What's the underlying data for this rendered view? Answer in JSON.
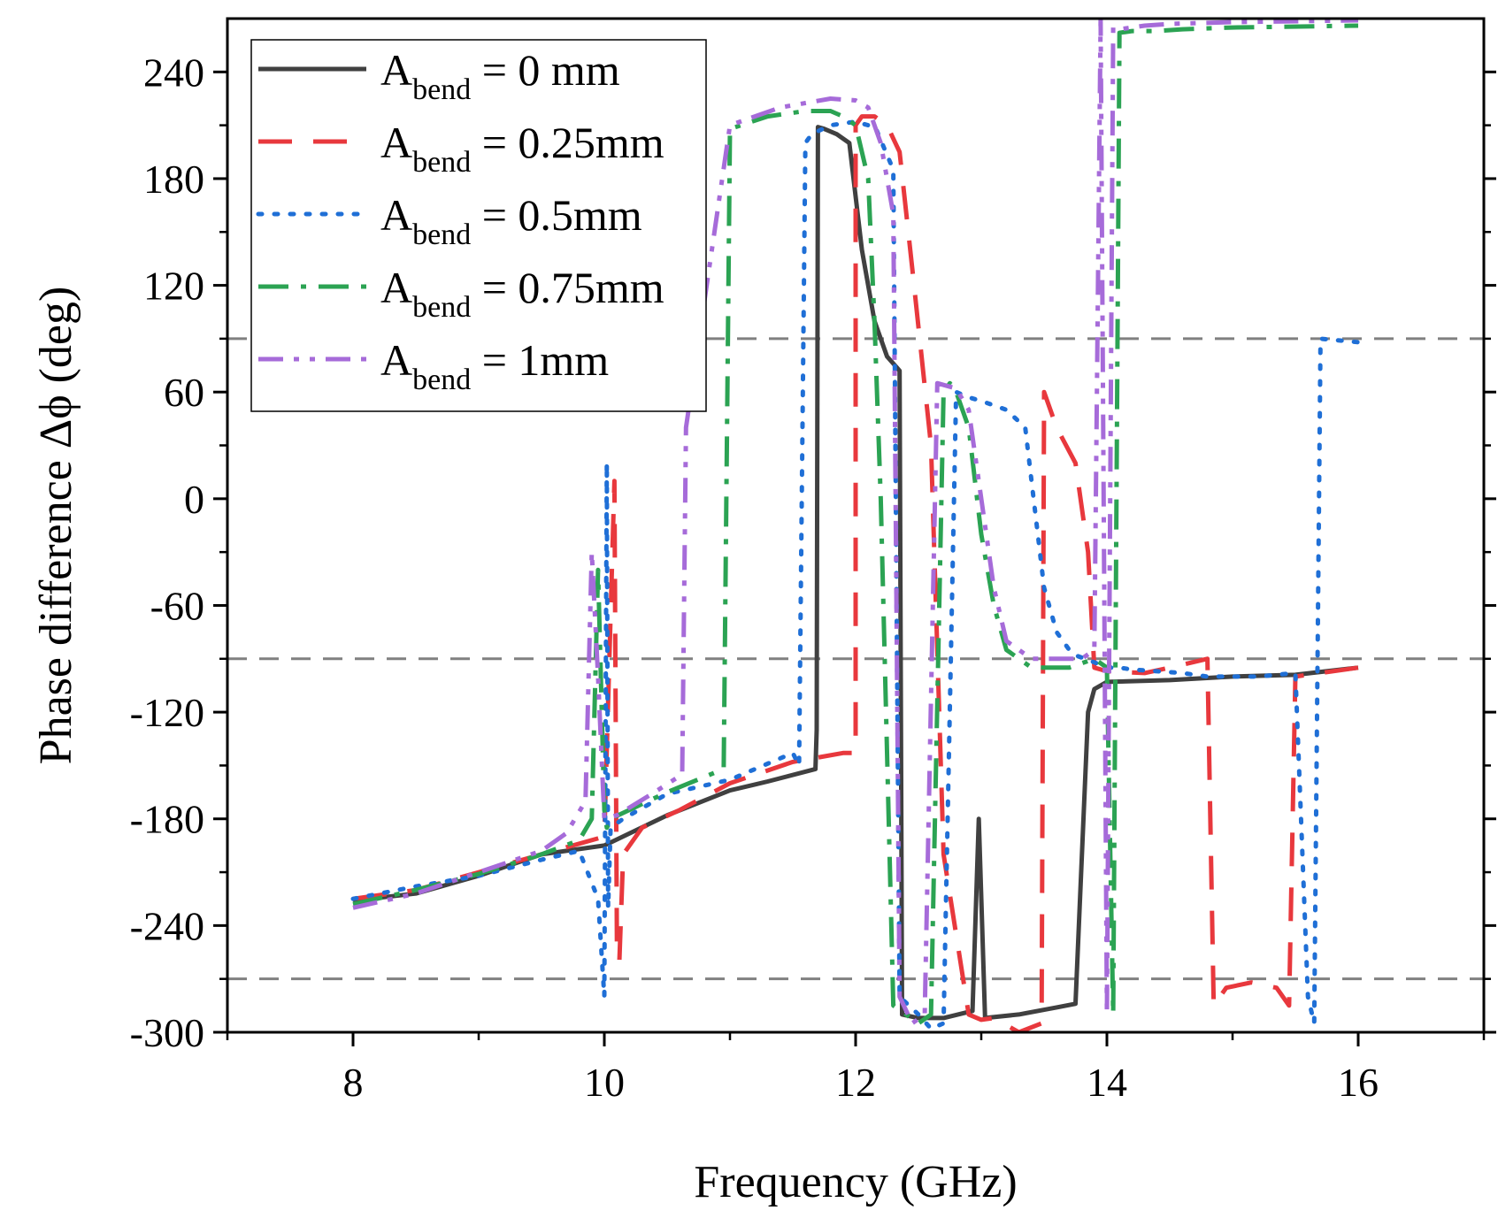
{
  "chart_data": {
    "type": "line",
    "xlabel": "Frequency (GHz)",
    "ylabel": "Phase difference Δϕ (deg)",
    "xlim": [
      7,
      17
    ],
    "ylim": [
      -300,
      270
    ],
    "xticks": [
      8,
      10,
      12,
      14,
      16
    ],
    "xtick_labels": [
      "8",
      "10",
      "12",
      "14",
      "16"
    ],
    "yticks": [
      -300,
      -240,
      -180,
      -120,
      -60,
      0,
      60,
      120,
      180,
      240
    ],
    "ytick_labels": [
      "-300",
      "-240",
      "-180",
      "-120",
      "-60",
      "0",
      "60",
      "120",
      "180",
      "240"
    ],
    "reference_lines": [
      90,
      -90,
      -270
    ],
    "reference_color": "#808080",
    "legend_position": "top-left",
    "legend": [
      {
        "prefix": "A",
        "sub": "bend",
        "suffix": " = 0 mm"
      },
      {
        "prefix": "A",
        "sub": "bend",
        "suffix": " = 0.25mm"
      },
      {
        "prefix": "A",
        "sub": "bend",
        "suffix": " = 0.5mm"
      },
      {
        "prefix": "A",
        "sub": "bend",
        "suffix": " = 0.75mm"
      },
      {
        "prefix": "A",
        "sub": "bend",
        "suffix": " = 1mm"
      }
    ],
    "series": [
      {
        "name": "A_bend = 0 mm",
        "color": "#404040",
        "dash": "solid",
        "x": [
          8.0,
          8.5,
          9.0,
          9.5,
          10.0,
          10.5,
          11.0,
          11.3,
          11.68,
          11.69,
          11.7,
          11.75,
          11.85,
          11.95,
          12.05,
          12.15,
          12.25,
          12.35,
          12.37,
          12.5,
          12.7,
          12.93,
          12.98,
          13.03,
          13.3,
          13.6,
          13.75,
          13.85,
          13.9,
          14.0,
          14.5,
          15.0,
          15.5,
          16.0
        ],
        "y": [
          -226,
          -222,
          -212,
          -200,
          -195,
          -178,
          -164,
          -159,
          -152,
          -130,
          209,
          208,
          205,
          200,
          140,
          100,
          80,
          72,
          -290,
          -292,
          -292,
          -288,
          -180,
          -292,
          -290,
          -286,
          -284,
          -120,
          -107,
          -103,
          -102,
          -100,
          -99,
          -95
        ]
      },
      {
        "name": "A_bend = 0.25mm",
        "color": "#e8383d",
        "dash": "dashed",
        "x": [
          8.0,
          8.5,
          9.0,
          9.5,
          10.0,
          10.08,
          10.1,
          10.12,
          10.15,
          10.3,
          10.6,
          11.0,
          11.5,
          11.9,
          12.0,
          12.0,
          12.05,
          12.15,
          12.25,
          12.35,
          12.45,
          12.6,
          12.7,
          12.9,
          13.0,
          13.1,
          13.3,
          13.48,
          13.5,
          13.6,
          13.75,
          13.85,
          13.9,
          14.0,
          14.3,
          14.5,
          14.8,
          14.85,
          14.95,
          15.15,
          15.35,
          15.45,
          15.5,
          16.0
        ],
        "y": [
          -225,
          -220,
          -210,
          -200,
          -190,
          10,
          -250,
          -260,
          -200,
          -185,
          -175,
          -160,
          -148,
          -143,
          -143,
          210,
          215,
          215,
          210,
          195,
          130,
          30,
          -200,
          -290,
          -293,
          -292,
          -300,
          -295,
          60,
          40,
          20,
          -30,
          -95,
          -97,
          -98,
          -95,
          -90,
          -285,
          -275,
          -272,
          -275,
          -285,
          -100,
          -95
        ]
      },
      {
        "name": "A_bend = 0.5mm",
        "color": "#1f6fd6",
        "dash": "dotted",
        "x": [
          8.0,
          8.5,
          9.0,
          9.5,
          9.8,
          9.95,
          10.0,
          10.02,
          10.03,
          10.05,
          10.15,
          10.5,
          11.0,
          11.5,
          11.55,
          11.6,
          11.65,
          11.8,
          12.0,
          12.1,
          12.15,
          12.3,
          12.35,
          12.5,
          12.6,
          12.7,
          12.8,
          12.9,
          13.0,
          13.2,
          13.35,
          13.5,
          13.6,
          13.7,
          13.75,
          13.9,
          14.0,
          14.1,
          14.2,
          14.4,
          14.6,
          14.8,
          15.0,
          15.2,
          15.5,
          15.6,
          15.65,
          15.7,
          16.0
        ],
        "y": [
          -225,
          -218,
          -212,
          -203,
          -198,
          -225,
          -280,
          20,
          -230,
          -185,
          -180,
          -166,
          -158,
          -143,
          -150,
          200,
          205,
          210,
          212,
          210,
          210,
          185,
          -280,
          -290,
          -298,
          -295,
          60,
          57,
          55,
          50,
          40,
          -50,
          -75,
          -85,
          -88,
          -92,
          -95,
          -95,
          -96,
          -97,
          -98,
          -100,
          -100,
          -100,
          -98,
          -280,
          -295,
          90,
          88
        ]
      },
      {
        "name": "A_bend = 0.75mm",
        "color": "#2ba353",
        "dash": "dashdot",
        "x": [
          8.0,
          8.5,
          9.0,
          9.5,
          9.8,
          9.9,
          9.95,
          10.0,
          10.02,
          10.05,
          10.5,
          10.95,
          11.0,
          11.3,
          11.6,
          11.8,
          11.9,
          12.0,
          12.1,
          12.15,
          12.2,
          12.3,
          12.5,
          12.6,
          12.7,
          12.75,
          12.8,
          12.9,
          13.0,
          13.1,
          13.2,
          13.4,
          13.7,
          13.9,
          14.0,
          14.05,
          14.1,
          14.2,
          14.4,
          14.6,
          15.0,
          16.0
        ],
        "y": [
          -228,
          -220,
          -211,
          -200,
          -192,
          -180,
          -40,
          -175,
          -185,
          -180,
          -165,
          -152,
          208,
          215,
          218,
          218,
          215,
          210,
          180,
          100,
          0,
          -285,
          -295,
          -290,
          60,
          65,
          60,
          40,
          -20,
          -60,
          -85,
          -95,
          -95,
          -90,
          -95,
          -290,
          262,
          263,
          263,
          264,
          265,
          266
        ]
      },
      {
        "name": "A_bend = 1mm",
        "color": "#a66bd9",
        "dash": "dashdotdot",
        "x": [
          8.0,
          8.5,
          9.0,
          9.5,
          9.7,
          9.85,
          9.9,
          9.95,
          10.0,
          10.1,
          10.4,
          10.62,
          10.65,
          11.0,
          11.4,
          11.8,
          12.0,
          12.1,
          12.2,
          12.3,
          12.35,
          12.45,
          12.55,
          12.65,
          12.8,
          12.9,
          13.0,
          13.1,
          13.2,
          13.4,
          13.6,
          13.8,
          13.9,
          13.95,
          14.0,
          14.05,
          14.1,
          14.2,
          14.3,
          14.5,
          15.0,
          16.0
        ],
        "y": [
          -230,
          -222,
          -210,
          -198,
          -188,
          -170,
          -30,
          -100,
          -180,
          -178,
          -165,
          -155,
          40,
          210,
          220,
          225,
          224,
          220,
          200,
          160,
          -280,
          -295,
          -290,
          65,
          62,
          50,
          0,
          -50,
          -80,
          -90,
          -90,
          -90,
          -85,
          270,
          -290,
          265,
          264,
          265,
          266,
          267,
          268,
          269
        ]
      }
    ]
  }
}
